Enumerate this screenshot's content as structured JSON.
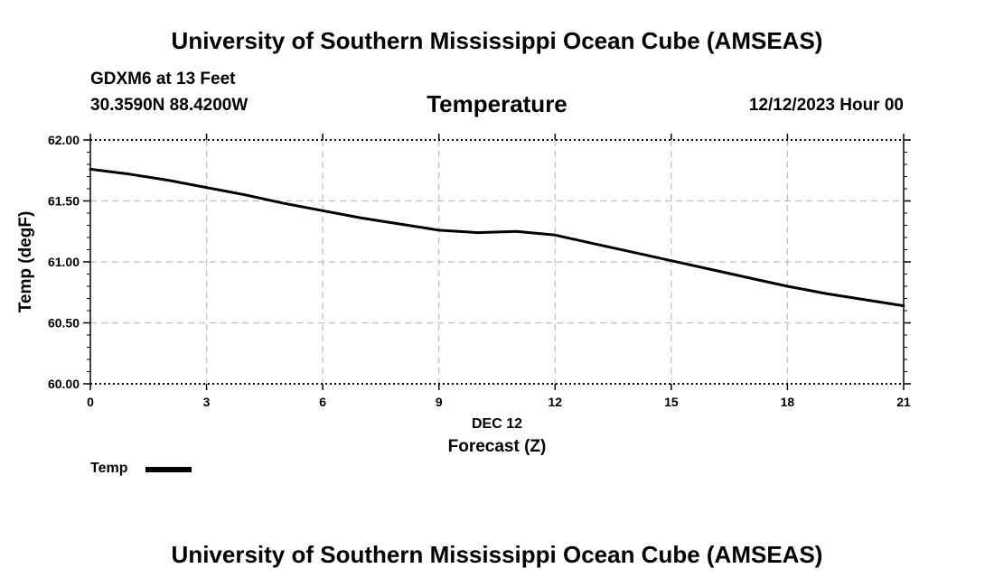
{
  "header": {
    "top_title": "University of Southern Mississippi Ocean Cube (AMSEAS)",
    "bottom_title": "University of Southern Mississippi Ocean Cube (AMSEAS)",
    "station": "GDXM6 at 13 Feet",
    "coords": "30.3590N  88.4200W",
    "run_date": "12/12/2023 Hour 00"
  },
  "chart_data": {
    "type": "line",
    "title": "Temperature",
    "xlabel": "Forecast (Z)",
    "xlabel_date": "DEC 12",
    "ylabel": "Temp (degF)",
    "xlim": [
      0,
      21
    ],
    "ylim": [
      60.0,
      62.0
    ],
    "x_ticks": [
      0,
      3,
      6,
      9,
      12,
      15,
      18,
      21
    ],
    "y_ticks": [
      "60.00",
      "60.50",
      "61.00",
      "61.50",
      "62.00"
    ],
    "grid": true,
    "legend_position": "bottom-left",
    "series": [
      {
        "name": "Temp",
        "color": "#000000",
        "x": [
          0,
          1,
          2,
          3,
          4,
          5,
          6,
          7,
          8,
          9,
          10,
          11,
          12,
          13,
          14,
          15,
          16,
          17,
          18,
          19,
          20,
          21
        ],
        "values": [
          61.76,
          61.72,
          61.67,
          61.61,
          61.55,
          61.48,
          61.42,
          61.36,
          61.31,
          61.26,
          61.24,
          61.25,
          61.22,
          61.15,
          61.08,
          61.01,
          60.94,
          60.87,
          60.8,
          60.74,
          60.69,
          60.64
        ]
      }
    ]
  }
}
